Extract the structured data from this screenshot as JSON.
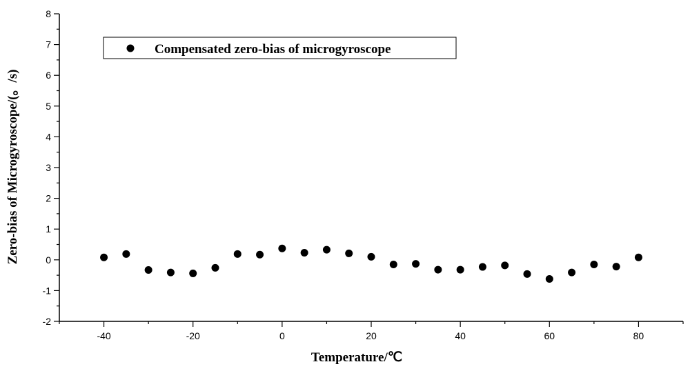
{
  "chart_data": {
    "type": "scatter",
    "xlabel": "Temperature/℃",
    "ylabel": "Zero-bias of Microgyroscope/(。/s)",
    "xlim": [
      -50,
      90
    ],
    "ylim": [
      -2,
      8
    ],
    "xticks": [
      -40,
      -20,
      0,
      20,
      40,
      60,
      80
    ],
    "yticks": [
      -2,
      -1,
      0,
      1,
      2,
      3,
      4,
      5,
      6,
      7,
      8
    ],
    "grid": false,
    "legend_position": "top-left",
    "series": [
      {
        "name": "Compensated zero-bias of microgyroscope",
        "color": "#000000",
        "marker": "circle",
        "x": [
          -40,
          -35,
          -30,
          -25,
          -20,
          -15,
          -10,
          -5,
          0,
          5,
          10,
          15,
          20,
          25,
          30,
          35,
          40,
          45,
          50,
          55,
          60,
          65,
          70,
          75,
          80
        ],
        "y": [
          0.08,
          0.19,
          -0.33,
          -0.41,
          -0.44,
          -0.26,
          0.19,
          0.17,
          0.37,
          0.23,
          0.33,
          0.21,
          0.1,
          -0.15,
          -0.13,
          -0.32,
          -0.32,
          -0.23,
          -0.18,
          -0.46,
          -0.62,
          -0.41,
          -0.15,
          -0.22,
          0.08
        ]
      }
    ]
  }
}
